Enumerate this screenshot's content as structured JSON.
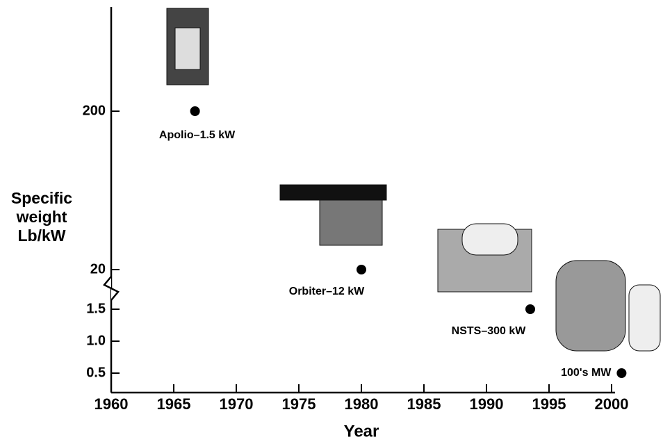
{
  "chart_data": {
    "type": "scatter",
    "x_label": "Year",
    "y_label": "Specific weight Lb/kW",
    "xlim": [
      1960,
      2000
    ],
    "xticks": [
      1960,
      1965,
      1970,
      1975,
      1980,
      1985,
      1990,
      1995,
      2000
    ],
    "ylim": [
      0,
      300
    ],
    "yticks": [
      {
        "value": 0.5,
        "label": "0.5"
      },
      {
        "value": 1.0,
        "label": "1.0"
      },
      {
        "value": 1.5,
        "label": "1.5"
      },
      20,
      200
    ],
    "color": "#000000",
    "points": [
      {
        "label": "Apolio–1.5 kW",
        "x": 1966.7,
        "y": 200
      },
      {
        "label": "Orbiter–12 kW",
        "x": 1980,
        "y": 20
      },
      {
        "label": "NSTS–300 kW",
        "x": 1993.5,
        "y": 1.5
      },
      {
        "label": "100's MW",
        "x": 2000.8,
        "y": 0.5
      }
    ]
  }
}
